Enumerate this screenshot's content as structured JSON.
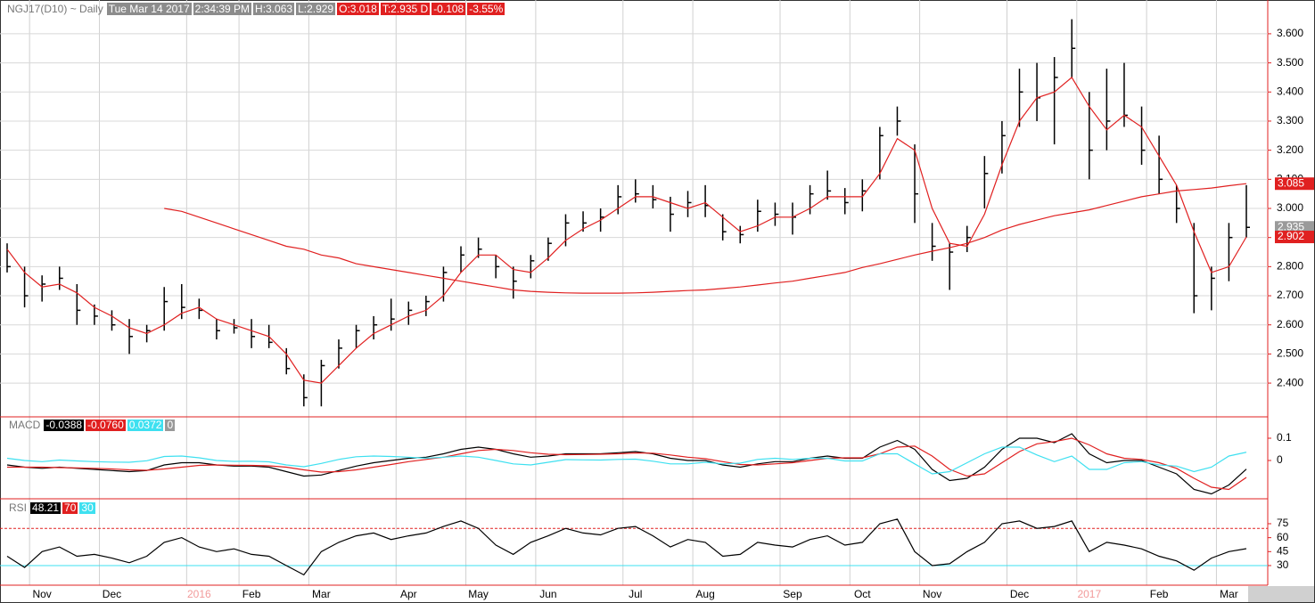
{
  "header": {
    "symbol": "NGJ17(D10) ~ Daily",
    "date": "Tue Mar 14 2017",
    "time": "2:34:39 PM",
    "high": "H:3.063",
    "low": "L:2.929",
    "open": "O:3.018",
    "last": "T:2.935 D",
    "change": "-0.108",
    "percent": "-3.55%"
  },
  "chart_data": [
    {
      "type": "ohlc",
      "color": "#000000",
      "categories": [
        null,
        null,
        "Nov",
        null,
        null,
        null,
        "Dec",
        null,
        null,
        null,
        null,
        "2016",
        null,
        null,
        "Feb",
        null,
        null,
        null,
        "Mar",
        null,
        null,
        null,
        null,
        "Apr",
        null,
        null,
        null,
        "May",
        null,
        null,
        null,
        "Jun",
        null,
        null,
        null,
        null,
        "Jul",
        null,
        null,
        null,
        "Aug",
        null,
        null,
        null,
        null,
        "Sep",
        null,
        null,
        null,
        "Oct",
        null,
        null,
        null,
        "Nov",
        null,
        null,
        null,
        null,
        "Dec",
        null,
        null,
        null,
        "2017",
        null,
        null,
        null,
        "Feb",
        null,
        null,
        null,
        "Mar",
        null
      ],
      "high": [
        2.88,
        2.8,
        2.77,
        2.8,
        2.74,
        2.67,
        2.65,
        2.62,
        2.6,
        2.73,
        2.74,
        2.69,
        2.62,
        2.62,
        2.62,
        2.6,
        2.52,
        2.43,
        2.48,
        2.55,
        2.6,
        2.63,
        2.69,
        2.68,
        2.7,
        2.8,
        2.87,
        2.9,
        2.84,
        2.8,
        2.84,
        2.9,
        2.98,
        2.99,
        3.0,
        3.08,
        3.1,
        3.08,
        3.04,
        3.06,
        3.08,
        2.98,
        2.94,
        3.03,
        3.02,
        3.02,
        3.08,
        3.13,
        3.07,
        3.1,
        3.28,
        3.35,
        3.22,
        2.95,
        2.88,
        2.94,
        3.18,
        3.3,
        3.48,
        3.5,
        3.52,
        3.65,
        3.4,
        3.48,
        3.5,
        3.35,
        3.25,
        3.08,
        2.95,
        2.8,
        2.95,
        3.08
      ],
      "low": [
        2.78,
        2.66,
        2.68,
        2.72,
        2.6,
        2.6,
        2.58,
        2.5,
        2.54,
        2.58,
        2.62,
        2.62,
        2.55,
        2.57,
        2.52,
        2.52,
        2.43,
        2.32,
        2.32,
        2.45,
        2.52,
        2.55,
        2.58,
        2.6,
        2.63,
        2.68,
        2.78,
        2.83,
        2.76,
        2.69,
        2.76,
        2.82,
        2.87,
        2.92,
        2.92,
        2.98,
        3.02,
        3.0,
        2.92,
        2.97,
        2.97,
        2.89,
        2.88,
        2.92,
        2.94,
        2.91,
        2.98,
        3.03,
        2.98,
        2.99,
        3.1,
        3.25,
        2.95,
        2.82,
        2.72,
        2.85,
        3.0,
        3.12,
        3.28,
        3.3,
        3.22,
        3.45,
        3.1,
        3.2,
        3.28,
        3.15,
        3.05,
        2.95,
        2.64,
        2.65,
        2.75,
        2.9
      ],
      "close": [
        2.8,
        2.7,
        2.74,
        2.76,
        2.65,
        2.63,
        2.6,
        2.56,
        2.58,
        2.68,
        2.66,
        2.65,
        2.58,
        2.59,
        2.56,
        2.54,
        2.45,
        2.35,
        2.46,
        2.52,
        2.58,
        2.6,
        2.62,
        2.65,
        2.68,
        2.78,
        2.84,
        2.86,
        2.8,
        2.75,
        2.82,
        2.88,
        2.95,
        2.95,
        2.97,
        3.04,
        3.05,
        3.03,
        2.98,
        3.02,
        3.01,
        2.92,
        2.91,
        2.99,
        2.98,
        2.97,
        3.05,
        3.06,
        3.02,
        3.06,
        3.25,
        3.3,
        3.05,
        2.87,
        2.85,
        2.9,
        3.12,
        3.25,
        3.4,
        3.38,
        3.45,
        3.55,
        3.2,
        3.3,
        3.32,
        3.2,
        3.1,
        3.0,
        2.7,
        2.76,
        2.9,
        2.935
      ],
      "overlays": [
        {
          "color": "#e02020",
          "values": [
            2.86,
            2.78,
            2.73,
            2.74,
            2.71,
            2.66,
            2.63,
            2.59,
            2.57,
            2.6,
            2.64,
            2.66,
            2.62,
            2.6,
            2.58,
            2.56,
            2.5,
            2.41,
            2.4,
            2.46,
            2.52,
            2.57,
            2.6,
            2.63,
            2.65,
            2.7,
            2.78,
            2.84,
            2.84,
            2.79,
            2.78,
            2.83,
            2.89,
            2.93,
            2.96,
            3.0,
            3.04,
            3.04,
            3.02,
            3.0,
            3.02,
            2.97,
            2.92,
            2.94,
            2.97,
            2.97,
            3.0,
            3.04,
            3.04,
            3.04,
            3.12,
            3.24,
            3.2,
            3.0,
            2.88,
            2.87,
            2.98,
            3.15,
            3.3,
            3.38,
            3.4,
            3.45,
            3.35,
            3.27,
            3.32,
            3.28,
            3.18,
            3.08,
            2.92,
            2.78,
            2.8,
            2.902
          ]
        },
        {
          "color": "#e02020",
          "values": [
            null,
            null,
            null,
            null,
            null,
            null,
            null,
            null,
            null,
            3.0,
            2.99,
            2.97,
            2.95,
            2.93,
            2.91,
            2.89,
            2.87,
            2.86,
            2.84,
            2.83,
            2.81,
            2.8,
            2.79,
            2.78,
            2.77,
            2.76,
            2.75,
            2.74,
            2.73,
            2.72,
            2.715,
            2.712,
            2.71,
            2.709,
            2.709,
            2.709,
            2.71,
            2.712,
            2.715,
            2.718,
            2.72,
            2.725,
            2.73,
            2.737,
            2.744,
            2.75,
            2.76,
            2.77,
            2.78,
            2.797,
            2.81,
            2.825,
            2.84,
            2.853,
            2.865,
            2.88,
            2.9,
            2.926,
            2.945,
            2.96,
            2.975,
            2.985,
            2.995,
            3.01,
            3.025,
            3.04,
            3.05,
            3.06,
            3.065,
            3.07,
            3.078,
            3.085
          ]
        }
      ],
      "ylim": [
        2.284,
        3.716
      ],
      "yticks": [
        {
          "value": 2.4,
          "label": "2.400"
        },
        {
          "value": 2.5,
          "label": "2.500"
        },
        {
          "value": 2.6,
          "label": "2.600"
        },
        {
          "value": 2.7,
          "label": "2.700"
        },
        {
          "value": 2.8,
          "label": "2.800"
        },
        {
          "value": 2.9,
          "label": "2.900"
        },
        {
          "value": 3.0,
          "label": "3.000"
        },
        {
          "value": 3.1,
          "label": "3.100"
        },
        {
          "value": 3.2,
          "label": "3.200"
        },
        {
          "value": 3.3,
          "label": "3.300"
        },
        {
          "value": 3.4,
          "label": "3.400"
        },
        {
          "value": 3.5,
          "label": "3.500"
        },
        {
          "value": 3.6,
          "label": "3.600"
        }
      ],
      "grid": true
    },
    {
      "type": "line",
      "title": "MACD",
      "series": [
        {
          "color": "#000000",
          "values": [
            -0.02,
            -0.03,
            -0.035,
            -0.03,
            -0.035,
            -0.04,
            -0.045,
            -0.05,
            -0.045,
            -0.02,
            -0.01,
            -0.01,
            -0.02,
            -0.025,
            -0.025,
            -0.03,
            -0.05,
            -0.07,
            -0.065,
            -0.045,
            -0.025,
            -0.01,
            0.0,
            0.01,
            0.015,
            0.03,
            0.05,
            0.06,
            0.05,
            0.03,
            0.015,
            0.02,
            0.03,
            0.03,
            0.03,
            0.035,
            0.04,
            0.03,
            0.01,
            0.0,
            0.0,
            -0.02,
            -0.03,
            -0.015,
            -0.005,
            -0.005,
            0.01,
            0.02,
            0.01,
            0.01,
            0.06,
            0.09,
            0.05,
            -0.04,
            -0.09,
            -0.08,
            -0.03,
            0.05,
            0.1,
            0.1,
            0.08,
            0.12,
            0.03,
            -0.01,
            0.0,
            0.0,
            -0.03,
            -0.06,
            -0.13,
            -0.15,
            -0.11,
            -0.0388
          ]
        },
        {
          "color": "#e02020",
          "values": [
            -0.03,
            -0.03,
            -0.03,
            -0.032,
            -0.033,
            -0.035,
            -0.038,
            -0.042,
            -0.044,
            -0.038,
            -0.03,
            -0.022,
            -0.02,
            -0.021,
            -0.022,
            -0.024,
            -0.03,
            -0.042,
            -0.052,
            -0.05,
            -0.042,
            -0.03,
            -0.018,
            -0.005,
            0.005,
            0.015,
            0.03,
            0.045,
            0.05,
            0.045,
            0.035,
            0.028,
            0.026,
            0.027,
            0.028,
            0.03,
            0.034,
            0.033,
            0.025,
            0.015,
            0.008,
            -0.005,
            -0.018,
            -0.02,
            -0.015,
            -0.01,
            0.0,
            0.01,
            0.012,
            0.012,
            0.03,
            0.06,
            0.065,
            0.02,
            -0.04,
            -0.07,
            -0.06,
            -0.01,
            0.04,
            0.075,
            0.085,
            0.1,
            0.07,
            0.03,
            0.01,
            0.005,
            -0.01,
            -0.035,
            -0.08,
            -0.12,
            -0.13,
            -0.076
          ],
          "value_label": "-0.0760"
        },
        {
          "color": "#3ee0f0",
          "values": [
            0.01,
            0.0,
            -0.005,
            0.002,
            -0.002,
            -0.005,
            -0.007,
            -0.008,
            -0.001,
            0.018,
            0.02,
            0.012,
            0.0,
            -0.004,
            -0.003,
            -0.006,
            -0.02,
            -0.028,
            -0.013,
            0.005,
            0.017,
            0.02,
            0.018,
            0.015,
            0.01,
            0.015,
            0.02,
            0.015,
            0.0,
            -0.015,
            -0.02,
            -0.008,
            0.004,
            0.003,
            0.002,
            0.005,
            0.006,
            -0.003,
            -0.015,
            -0.015,
            -0.008,
            -0.015,
            -0.012,
            0.005,
            0.01,
            0.005,
            0.01,
            0.01,
            -0.002,
            -0.002,
            0.03,
            0.03,
            -0.015,
            -0.06,
            -0.05,
            -0.01,
            0.03,
            0.06,
            0.06,
            0.025,
            -0.005,
            0.02,
            -0.04,
            -0.04,
            -0.01,
            -0.005,
            -0.02,
            -0.025,
            -0.05,
            -0.03,
            0.02,
            0.0372
          ]
        }
      ],
      "extra_readout": 0,
      "ylim": [
        -0.172,
        0.196
      ],
      "yticks": [
        0.1,
        0
      ]
    },
    {
      "type": "line",
      "title": "RSI",
      "series": [
        {
          "color": "#000000",
          "values": [
            40,
            28,
            45,
            50,
            40,
            42,
            38,
            33,
            40,
            55,
            60,
            50,
            45,
            48,
            42,
            40,
            30,
            20,
            45,
            55,
            62,
            65,
            58,
            62,
            65,
            72,
            78,
            70,
            52,
            42,
            55,
            62,
            70,
            65,
            63,
            70,
            72,
            62,
            50,
            58,
            55,
            40,
            42,
            55,
            52,
            50,
            58,
            62,
            52,
            55,
            75,
            80,
            45,
            30,
            32,
            45,
            55,
            75,
            78,
            70,
            72,
            78,
            45,
            55,
            52,
            48,
            40,
            35,
            25,
            38,
            45,
            48.21
          ]
        }
      ],
      "levels": [
        {
          "value": 70,
          "color": "#e02020"
        },
        {
          "value": 30,
          "color": "#3ee0f0"
        }
      ],
      "ylim": [
        8.9,
        101.8
      ],
      "yticks": [
        30,
        45,
        60,
        75
      ]
    }
  ]
}
